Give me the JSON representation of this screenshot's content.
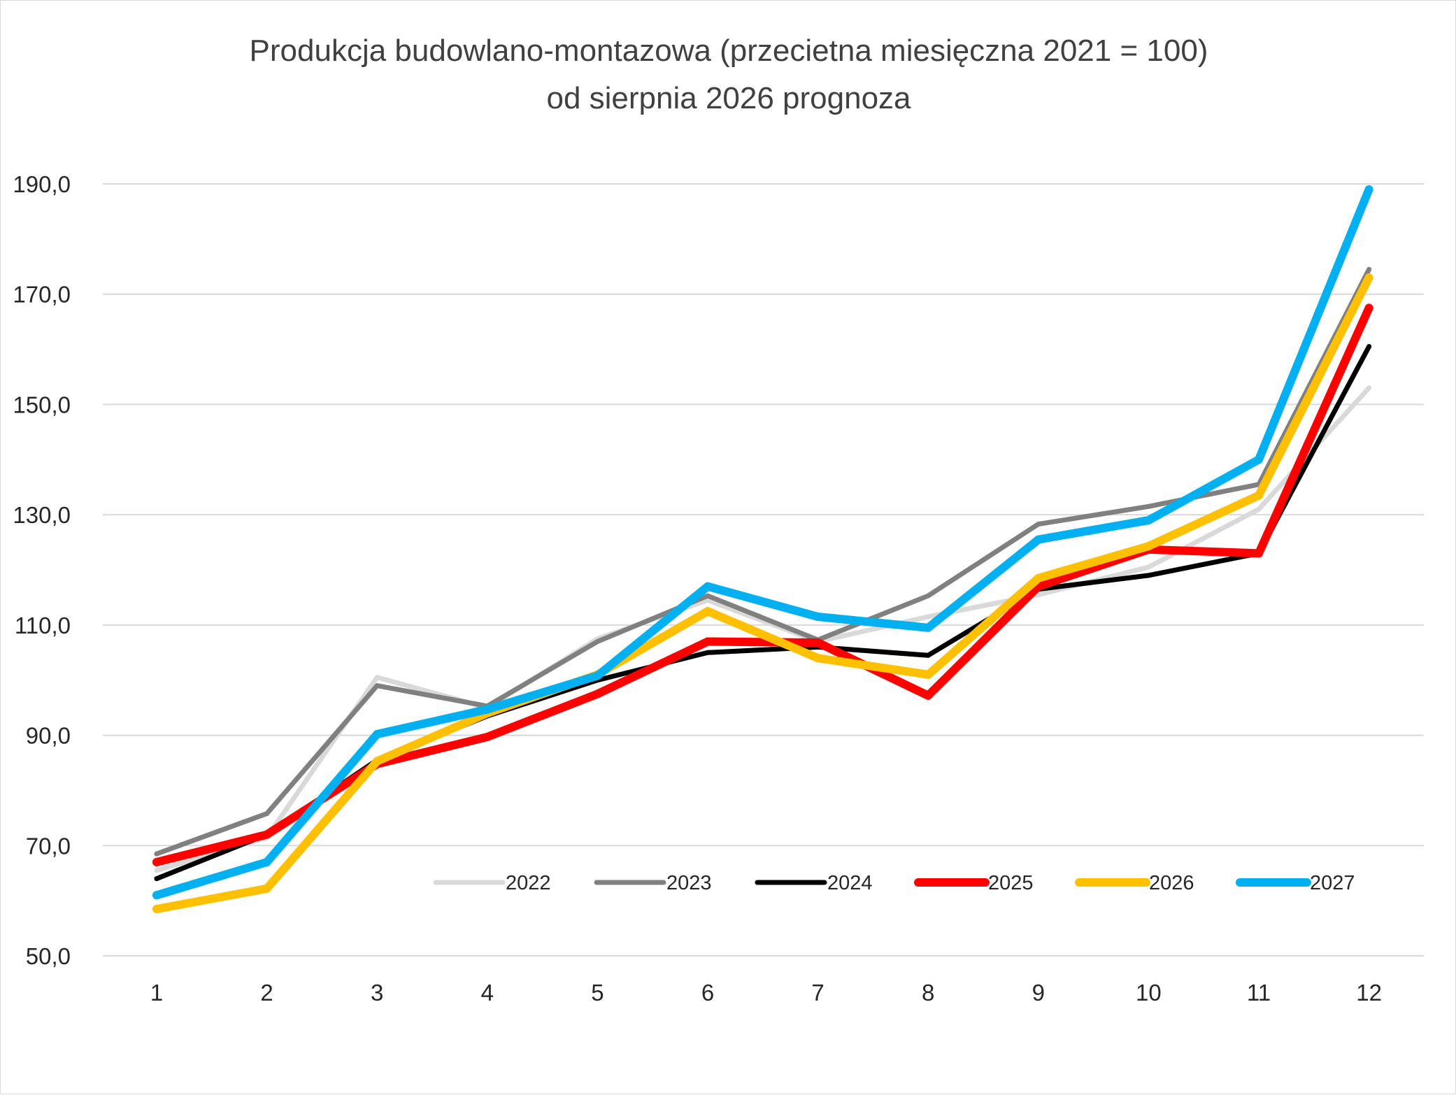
{
  "chart_data": {
    "type": "line",
    "title": "Produkcja budowlano-montazowa (przecietna miesięczna 2021 = 100)",
    "subtitle": "od sierpnia 2026 prognoza",
    "xlabel": "",
    "ylabel": "",
    "x": [
      "1",
      "2",
      "3",
      "4",
      "5",
      "6",
      "7",
      "8",
      "9",
      "10",
      "11",
      "12"
    ],
    "y_ticks": [
      "50,0",
      "70,0",
      "90,0",
      "110,0",
      "130,0",
      "150,0",
      "170,0",
      "190,0"
    ],
    "ylim": [
      50,
      190
    ],
    "grid": "horizontal",
    "legend_position": "bottom-right inside plot",
    "series": [
      {
        "name": "2022",
        "color": "#d9d9d9",
        "width": "thin",
        "values": [
          65.5,
          71.5,
          100.5,
          95.0,
          107.5,
          114.5,
          107.0,
          111.5,
          115.5,
          120.5,
          131.0,
          153.0
        ]
      },
      {
        "name": "2023",
        "color": "#808080",
        "width": "thin",
        "values": [
          68.5,
          75.8,
          99.0,
          95.3,
          107.0,
          115.3,
          107.3,
          115.3,
          128.3,
          131.5,
          135.5,
          174.5
        ]
      },
      {
        "name": "2024",
        "color": "#000000",
        "width": "thin",
        "values": [
          64.0,
          72.0,
          85.5,
          93.5,
          100.0,
          105.0,
          106.0,
          104.5,
          116.5,
          119.0,
          123.0,
          160.5
        ]
      },
      {
        "name": "2025",
        "color": "#ff0000",
        "width": "thick",
        "values": [
          67.0,
          72.0,
          84.8,
          89.7,
          97.5,
          107.0,
          106.8,
          97.2,
          117.0,
          123.7,
          123.0,
          167.5
        ]
      },
      {
        "name": "2026",
        "color": "#ffc000",
        "width": "thick",
        "values": [
          58.5,
          62.2,
          85.3,
          94.0,
          101.0,
          112.5,
          104.0,
          101.0,
          118.5,
          124.3,
          133.5,
          173.0
        ]
      },
      {
        "name": "2027",
        "color": "#00b0f0",
        "width": "thick",
        "values": [
          61.0,
          67.0,
          90.2,
          94.7,
          100.8,
          117.0,
          111.5,
          109.5,
          125.5,
          129.0,
          140.0,
          189.0
        ]
      }
    ]
  }
}
